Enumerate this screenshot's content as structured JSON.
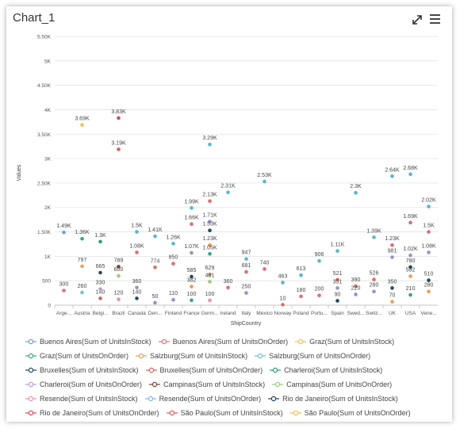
{
  "chart_data": {
    "type": "scatter",
    "title": "Chart_1",
    "x_label": "ShipCountry",
    "y_label": "Values",
    "categories": [
      "Arge...",
      "Austria",
      "Belgi...",
      "Brazil",
      "Canada",
      "Den...",
      "Finland",
      "France",
      "Germ...",
      "Ireland",
      "Italy",
      "Mexico",
      "Norway",
      "Poland",
      "Portu...",
      "Spain",
      "Swed...",
      "Switz...",
      "UK",
      "USA",
      "Vene..."
    ],
    "ylim": [
      0,
      5500
    ],
    "yticks": [
      0,
      500,
      {
        "value": 1000,
        "label": "1K"
      },
      {
        "value": 1500,
        "label": "1.50K"
      },
      {
        "value": 2000,
        "label": "2K"
      },
      {
        "value": 2500,
        "label": "2.50K"
      },
      {
        "value": 3000,
        "label": "3K"
      },
      {
        "value": 3500,
        "label": "3.50K"
      },
      {
        "value": 4000,
        "label": "4K"
      },
      {
        "value": 4500,
        "label": "4.50K"
      },
      {
        "value": 5000,
        "label": "5K"
      },
      {
        "value": 5500,
        "label": "5.50K"
      }
    ],
    "grid": true,
    "series": [
      {
        "name": "Buenos Aires(Sum of UnitsInStock)",
        "color": "#6a9fe0",
        "values": [
          1490,
          null,
          null,
          null,
          null,
          null,
          null,
          null,
          null,
          null,
          null,
          null,
          null,
          null,
          null,
          null,
          null,
          null,
          null,
          null,
          null
        ],
        "value_labels": [
          "1.49K",
          null,
          null,
          null,
          null,
          null,
          null,
          null,
          null,
          null,
          null,
          null,
          null,
          null,
          null,
          null,
          null,
          null,
          null,
          null,
          null
        ]
      },
      {
        "name": "Buenos Aires(Sum of UnitsOnOrder)",
        "color": "#ea6b6b",
        "values": [
          300,
          null,
          null,
          null,
          null,
          null,
          null,
          null,
          null,
          null,
          null,
          null,
          null,
          null,
          null,
          null,
          null,
          null,
          null,
          null,
          null
        ]
      },
      {
        "name": "Graz(Sum of UnitsInStock)",
        "color": "#f6c243",
        "values": [
          null,
          3690,
          null,
          null,
          null,
          null,
          null,
          null,
          null,
          null,
          null,
          null,
          null,
          null,
          null,
          null,
          null,
          null,
          null,
          null,
          null
        ],
        "value_labels": [
          null,
          "3.69K",
          null,
          null,
          null,
          null,
          null,
          null,
          null,
          null,
          null,
          null,
          null,
          null,
          null,
          null,
          null,
          null,
          null,
          null,
          null
        ]
      },
      {
        "name": "Graz(Sum of UnitsOnOrder)",
        "color": "#2fa885",
        "values": [
          null,
          1360,
          null,
          null,
          null,
          null,
          null,
          null,
          null,
          null,
          null,
          null,
          null,
          null,
          null,
          null,
          null,
          null,
          null,
          null,
          null
        ],
        "value_labels": [
          null,
          "1.36K",
          null,
          null,
          null,
          null,
          null,
          null,
          null,
          null,
          null,
          null,
          null,
          null,
          null,
          null,
          null,
          null,
          null,
          null,
          null
        ]
      },
      {
        "name": "Salzburg(Sum of UnitsInStock)",
        "color": "#f49b4d",
        "values": [
          null,
          797,
          null,
          null,
          null,
          null,
          null,
          null,
          null,
          null,
          null,
          null,
          null,
          null,
          null,
          null,
          null,
          null,
          null,
          null,
          null
        ]
      },
      {
        "name": "Salzburg(Sum of UnitsOnOrder)",
        "color": "#6ac6dc",
        "values": [
          null,
          260,
          null,
          null,
          null,
          null,
          null,
          null,
          null,
          null,
          null,
          null,
          null,
          null,
          null,
          null,
          null,
          null,
          null,
          null,
          null
        ]
      },
      {
        "name": "Bruxelles(Sum of UnitsInStock)",
        "color": "#1e4b5a",
        "values": [
          null,
          null,
          665,
          null,
          null,
          null,
          null,
          null,
          null,
          null,
          null,
          null,
          null,
          null,
          null,
          null,
          null,
          null,
          null,
          null,
          null
        ]
      },
      {
        "name": "Bruxelles(Sum of UnitsOnOrder)",
        "color": "#e45a5a",
        "values": [
          null,
          null,
          140,
          null,
          null,
          null,
          null,
          null,
          null,
          null,
          null,
          null,
          null,
          null,
          null,
          null,
          null,
          null,
          null,
          null,
          null
        ]
      },
      {
        "name": "Charleroi(Sum of UnitsInStock)",
        "color": "#27a070",
        "values": [
          null,
          null,
          1300,
          null,
          null,
          null,
          null,
          null,
          null,
          null,
          null,
          null,
          null,
          null,
          null,
          null,
          null,
          null,
          null,
          null,
          null
        ],
        "value_labels": [
          null,
          null,
          "1.3K",
          null,
          null,
          null,
          null,
          null,
          null,
          null,
          null,
          null,
          null,
          null,
          null,
          null,
          null,
          null,
          null,
          null,
          null
        ]
      },
      {
        "name": "Charleroi(Sum of UnitsOnOrder)",
        "color": "#b99bd0",
        "values": [
          null,
          null,
          330,
          null,
          null,
          null,
          null,
          null,
          null,
          null,
          null,
          null,
          null,
          null,
          null,
          null,
          null,
          null,
          null,
          null,
          null
        ]
      },
      {
        "name": "Campinas(Sum of UnitsInStock)",
        "color": "#7b3c35",
        "values": [
          null,
          null,
          null,
          789,
          null,
          null,
          null,
          null,
          null,
          null,
          null,
          null,
          null,
          null,
          null,
          null,
          null,
          null,
          null,
          null,
          null
        ]
      },
      {
        "name": "Campinas(Sum of UnitsOnOrder)",
        "color": "#9acb7a",
        "values": [
          null,
          null,
          null,
          600,
          null,
          null,
          null,
          null,
          null,
          null,
          null,
          null,
          null,
          null,
          null,
          null,
          null,
          null,
          null,
          null,
          null
        ]
      },
      {
        "name": "Resende(Sum of UnitsInStock)",
        "color": "#f58ea0",
        "values": [
          null,
          null,
          null,
          120,
          null,
          null,
          null,
          null,
          null,
          null,
          null,
          null,
          null,
          null,
          null,
          null,
          null,
          null,
          null,
          null,
          null
        ]
      },
      {
        "name": "Resende(Sum of UnitsOnOrder)",
        "color": "#7fb8ee",
        "values": [
          null,
          null,
          null,
          null,
          null,
          null,
          null,
          null,
          null,
          null,
          null,
          null,
          null,
          null,
          null,
          null,
          null,
          null,
          null,
          null,
          null
        ]
      },
      {
        "name": "Rio de Janeiro(Sum of UnitsInStock)",
        "color": "#1d3f72",
        "values": [
          null,
          null,
          null,
          null,
          null,
          null,
          null,
          null,
          null,
          null,
          null,
          null,
          null,
          null,
          null,
          null,
          null,
          null,
          null,
          null,
          null
        ]
      },
      {
        "name": "Rio de Janeiro(Sum of UnitsOnOrder)",
        "color": "#e0424f",
        "values": [
          null,
          null,
          null,
          3830,
          null,
          null,
          null,
          null,
          null,
          null,
          null,
          null,
          null,
          null,
          null,
          null,
          null,
          null,
          null,
          null,
          null
        ],
        "value_labels": [
          null,
          null,
          null,
          "3.83K",
          null,
          null,
          null,
          null,
          null,
          null,
          null,
          null,
          null,
          null,
          null,
          null,
          null,
          null,
          null,
          null,
          null
        ]
      },
      {
        "name": "São Paulo(Sum of UnitsInStock)",
        "color": "#e8584f",
        "values": [
          null,
          null,
          null,
          3190,
          null,
          null,
          null,
          null,
          null,
          null,
          null,
          null,
          null,
          null,
          null,
          null,
          null,
          null,
          null,
          null,
          null
        ],
        "value_labels": [
          null,
          null,
          null,
          "3.19K",
          null,
          null,
          null,
          null,
          null,
          null,
          null,
          null,
          null,
          null,
          null,
          null,
          null,
          null,
          null,
          null,
          null
        ]
      },
      {
        "name": "São Paulo(Sum of UnitsOnOrder)",
        "color": "#f0c040",
        "values": [
          null,
          null,
          null,
          null,
          null,
          null,
          null,
          null,
          null,
          null,
          null,
          null,
          null,
          null,
          null,
          null,
          null,
          null,
          null,
          null,
          null
        ]
      },
      {
        "color": "#4fb8d8",
        "values": [
          null,
          null,
          null,
          null,
          1500,
          1410,
          1260,
          1990,
          3290,
          2310,
          947,
          2530,
          463,
          613,
          906,
          1110,
          2300,
          1390,
          2640,
          2680,
          2020
        ],
        "value_labels": [
          null,
          null,
          null,
          null,
          "1.5K",
          "1.41K",
          "1.26K",
          "1.99K",
          "3.29K",
          "2.31K",
          null,
          "2.53K",
          null,
          null,
          null,
          "1.11K",
          "2.3K",
          "1.39K",
          "2.64K",
          "2.68K",
          "2.02K"
        ]
      },
      {
        "color": "#e56a6a",
        "values": [
          null,
          null,
          null,
          null,
          1080,
          774,
          850,
          1660,
          2130,
          360,
          681,
          740,
          10,
          180,
          200,
          521,
          390,
          526,
          1230,
          1690,
          1500
        ],
        "value_labels": [
          null,
          null,
          null,
          null,
          "1.08K",
          null,
          null,
          "1.66K",
          "2.13K",
          null,
          null,
          null,
          null,
          null,
          null,
          null,
          null,
          null,
          "1.23K",
          "1.69K",
          "1.5K"
        ]
      },
      {
        "color": "#9a8fc8",
        "values": [
          null,
          null,
          null,
          null,
          360,
          50,
          110,
          1070,
          1710,
          null,
          250,
          null,
          null,
          null,
          null,
          351,
          220,
          280,
          981,
          1020,
          1080
        ],
        "value_labels": [
          null,
          null,
          null,
          null,
          null,
          null,
          null,
          "1.07K",
          "1.71K",
          null,
          null,
          null,
          null,
          null,
          null,
          null,
          null,
          null,
          null,
          "1.02K",
          "1.08K"
        ]
      },
      {
        "color": "#1e4b5a",
        "values": [
          null,
          null,
          null,
          null,
          140,
          null,
          null,
          585,
          1530,
          null,
          null,
          null,
          null,
          null,
          null,
          90,
          null,
          null,
          350,
          780,
          510
        ],
        "value_labels": [
          null,
          null,
          null,
          null,
          null,
          null,
          null,
          null,
          "1.53K",
          null,
          null,
          null,
          null,
          null,
          null,
          null,
          null,
          null,
          null,
          null,
          null
        ]
      },
      {
        "color": "#f49b4d",
        "values": [
          null,
          null,
          null,
          null,
          null,
          null,
          null,
          382,
          1230,
          null,
          null,
          null,
          null,
          null,
          null,
          null,
          null,
          null,
          70,
          592,
          280
        ],
        "value_labels": [
          null,
          null,
          null,
          null,
          null,
          null,
          null,
          null,
          "1.23K",
          null,
          null,
          null,
          null,
          null,
          null,
          null,
          null,
          null,
          null,
          null,
          null
        ]
      },
      {
        "color": "#2fa885",
        "values": [
          null,
          null,
          null,
          null,
          null,
          null,
          null,
          100,
          1050,
          null,
          null,
          null,
          null,
          null,
          null,
          null,
          null,
          null,
          null,
          210,
          null
        ],
        "value_labels": [
          null,
          null,
          null,
          null,
          null,
          null,
          null,
          null,
          "1.05K",
          null,
          null,
          null,
          null,
          null,
          null,
          null,
          null,
          null,
          null,
          null,
          null
        ]
      },
      {
        "color": "#c9a96a",
        "values": [
          null,
          null,
          null,
          null,
          null,
          null,
          null,
          null,
          629,
          null,
          null,
          null,
          null,
          null,
          null,
          null,
          null,
          null,
          null,
          null,
          null
        ]
      },
      {
        "color": "#9acb7a",
        "values": [
          null,
          null,
          null,
          null,
          null,
          null,
          null,
          null,
          481,
          null,
          null,
          null,
          null,
          null,
          null,
          null,
          null,
          null,
          null,
          null,
          null
        ]
      },
      {
        "color": "#f58ea0",
        "values": [
          null,
          null,
          null,
          null,
          null,
          null,
          null,
          null,
          100,
          null,
          null,
          null,
          null,
          null,
          null,
          null,
          null,
          null,
          null,
          null,
          null
        ]
      }
    ]
  }
}
